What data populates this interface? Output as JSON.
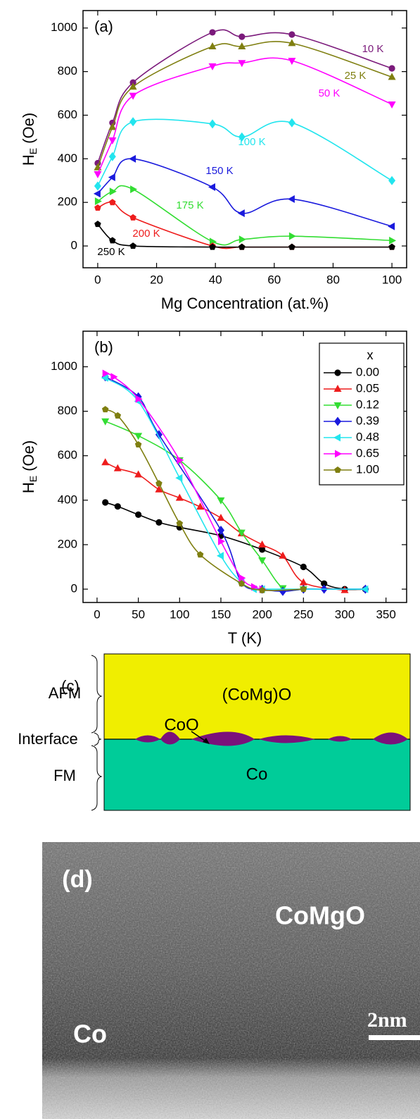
{
  "chart_data": [
    {
      "type": "line",
      "panel_label": "(a)",
      "x_label": "Mg Concentration (at.%)",
      "y_label": {
        "symbol": "H",
        "subscript": "E",
        "unit": " (Oe)"
      },
      "xlim": [
        -5,
        105
      ],
      "xticks": [
        0,
        20,
        40,
        60,
        80,
        100
      ],
      "ylim": [
        -100,
        1080
      ],
      "yticks": [
        0,
        200,
        400,
        600,
        800,
        1000
      ],
      "x": [
        0,
        5,
        12,
        39,
        49,
        66,
        100
      ],
      "series": [
        {
          "name": "10 K",
          "color": "#7b1a7b",
          "marker": "circle",
          "values": [
            380,
            565,
            750,
            980,
            960,
            970,
            815
          ]
        },
        {
          "name": "25 K",
          "color": "#7f7f10",
          "marker": "triangle-up",
          "values": [
            360,
            545,
            730,
            915,
            915,
            930,
            775
          ]
        },
        {
          "name": "50 K",
          "color": "#ff00ff",
          "marker": "triangle-down",
          "values": [
            330,
            485,
            690,
            825,
            840,
            850,
            650
          ]
        },
        {
          "name": "100 K",
          "color": "#22e5ee",
          "marker": "diamond",
          "values": [
            275,
            410,
            570,
            560,
            500,
            565,
            300
          ]
        },
        {
          "name": "150 K",
          "color": "#1a1add",
          "marker": "triangle-left",
          "values": [
            240,
            315,
            400,
            270,
            150,
            215,
            90
          ]
        },
        {
          "name": "175 K",
          "color": "#33dd33",
          "marker": "triangle-right",
          "values": [
            205,
            250,
            260,
            20,
            30,
            45,
            25
          ]
        },
        {
          "name": "200 K",
          "color": "#ee1c1c",
          "marker": "pentagon",
          "values": [
            175,
            200,
            130,
            0,
            -5,
            -5,
            -5
          ]
        },
        {
          "name": "250 K",
          "color": "#000000",
          "marker": "pentagon",
          "values": [
            100,
            25,
            0,
            -5,
            -5,
            -5,
            -5
          ]
        }
      ]
    },
    {
      "type": "line",
      "panel_label": "(b)",
      "x_label": "T (K)",
      "y_label": {
        "symbol": "H",
        "subscript": "E",
        "unit": " (Oe)"
      },
      "legend_title": "x",
      "legend": "upper right",
      "xlim": [
        -17,
        375
      ],
      "xticks": [
        0,
        50,
        100,
        150,
        200,
        250,
        300,
        350
      ],
      "ylim": [
        -60,
        1160
      ],
      "yticks": [
        0,
        200,
        400,
        600,
        800,
        1000
      ],
      "series": [
        {
          "name": "0.00",
          "color": "#000000",
          "marker": "circle",
          "x": [
            10,
            25,
            50,
            75,
            100,
            150,
            200,
            250,
            275,
            300,
            325
          ],
          "values": [
            390,
            372,
            335,
            300,
            278,
            240,
            178,
            100,
            25,
            0,
            0
          ]
        },
        {
          "name": "0.05",
          "color": "#ee1c1c",
          "marker": "triangle-up",
          "x": [
            10,
            25,
            50,
            75,
            100,
            125,
            150,
            175,
            200,
            225,
            250,
            300
          ],
          "values": [
            570,
            543,
            515,
            448,
            410,
            370,
            320,
            250,
            200,
            150,
            30,
            -5
          ]
        },
        {
          "name": "0.12",
          "color": "#33dd33",
          "marker": "triangle-down",
          "x": [
            10,
            50,
            100,
            150,
            175,
            200,
            225,
            250
          ],
          "values": [
            755,
            690,
            580,
            400,
            255,
            130,
            5,
            0
          ]
        },
        {
          "name": "0.39",
          "color": "#1a1add",
          "marker": "diamond",
          "x": [
            10,
            50,
            75,
            150,
            175,
            200,
            225,
            250,
            275,
            325
          ],
          "values": [
            955,
            865,
            695,
            265,
            30,
            0,
            -10,
            0,
            0,
            0
          ]
        },
        {
          "name": "0.48",
          "color": "#22e5ee",
          "marker": "triangle-left",
          "x": [
            10,
            50,
            100,
            150,
            175,
            190,
            200,
            325
          ],
          "values": [
            950,
            845,
            500,
            150,
            30,
            0,
            0,
            0
          ]
        },
        {
          "name": "0.65",
          "color": "#ff00ff",
          "marker": "triangle-right",
          "x": [
            10,
            20,
            50,
            100,
            150,
            175,
            190,
            200
          ],
          "values": [
            970,
            955,
            855,
            580,
            215,
            50,
            10,
            0
          ]
        },
        {
          "name": "1.00",
          "color": "#7f7f10",
          "marker": "pentagon",
          "x": [
            10,
            25,
            50,
            75,
            100,
            125,
            175,
            200,
            250
          ],
          "values": [
            808,
            780,
            650,
            475,
            295,
            155,
            25,
            -5,
            0
          ]
        }
      ]
    }
  ],
  "diagram": {
    "panel_label": "(c)",
    "afm": "AFM",
    "interface": "Interface",
    "fm": "FM",
    "top_layer": "(CoMg)O",
    "interface_phase": "CoO",
    "bottom_layer": "Co"
  },
  "image": {
    "panel_label": "(d)",
    "top_label": "CoMgO",
    "bottom_label": "Co",
    "scale_bar": "2nm"
  }
}
